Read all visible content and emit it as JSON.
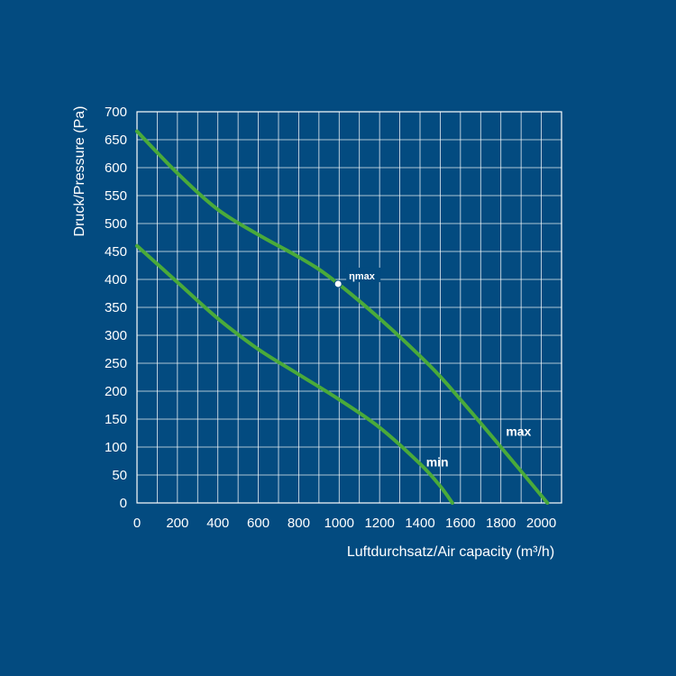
{
  "colors": {
    "background": "#034b80",
    "grid": "#ffffff",
    "curve": "#4aaa3a",
    "text": "#ffffff"
  },
  "chart_data": {
    "type": "line",
    "xlabel": "Luftdurchsatz/Air capacity (m³/h)",
    "ylabel": "Druck/Pressure (Pa)",
    "xlim": [
      0,
      2100
    ],
    "ylim": [
      0,
      700
    ],
    "x_ticks": [
      0,
      200,
      400,
      600,
      800,
      1000,
      1200,
      1400,
      1600,
      1800,
      2000
    ],
    "y_ticks": [
      0,
      50,
      100,
      150,
      200,
      250,
      300,
      350,
      400,
      450,
      500,
      550,
      600,
      650,
      700
    ],
    "grid": true,
    "series": [
      {
        "name": "max",
        "x": [
          0,
          200,
          400,
          600,
          800,
          950,
          1200,
          1450,
          1600,
          1800,
          2030
        ],
        "y": [
          665,
          590,
          525,
          480,
          440,
          405,
          330,
          245,
          185,
          100,
          0
        ]
      },
      {
        "name": "min",
        "x": [
          0,
          200,
          400,
          600,
          800,
          1000,
          1200,
          1400,
          1500,
          1560
        ],
        "y": [
          460,
          395,
          330,
          275,
          230,
          185,
          135,
          70,
          30,
          0
        ]
      }
    ],
    "annotations": [
      {
        "label": "ηmax",
        "x": 995,
        "y": 392
      }
    ]
  }
}
